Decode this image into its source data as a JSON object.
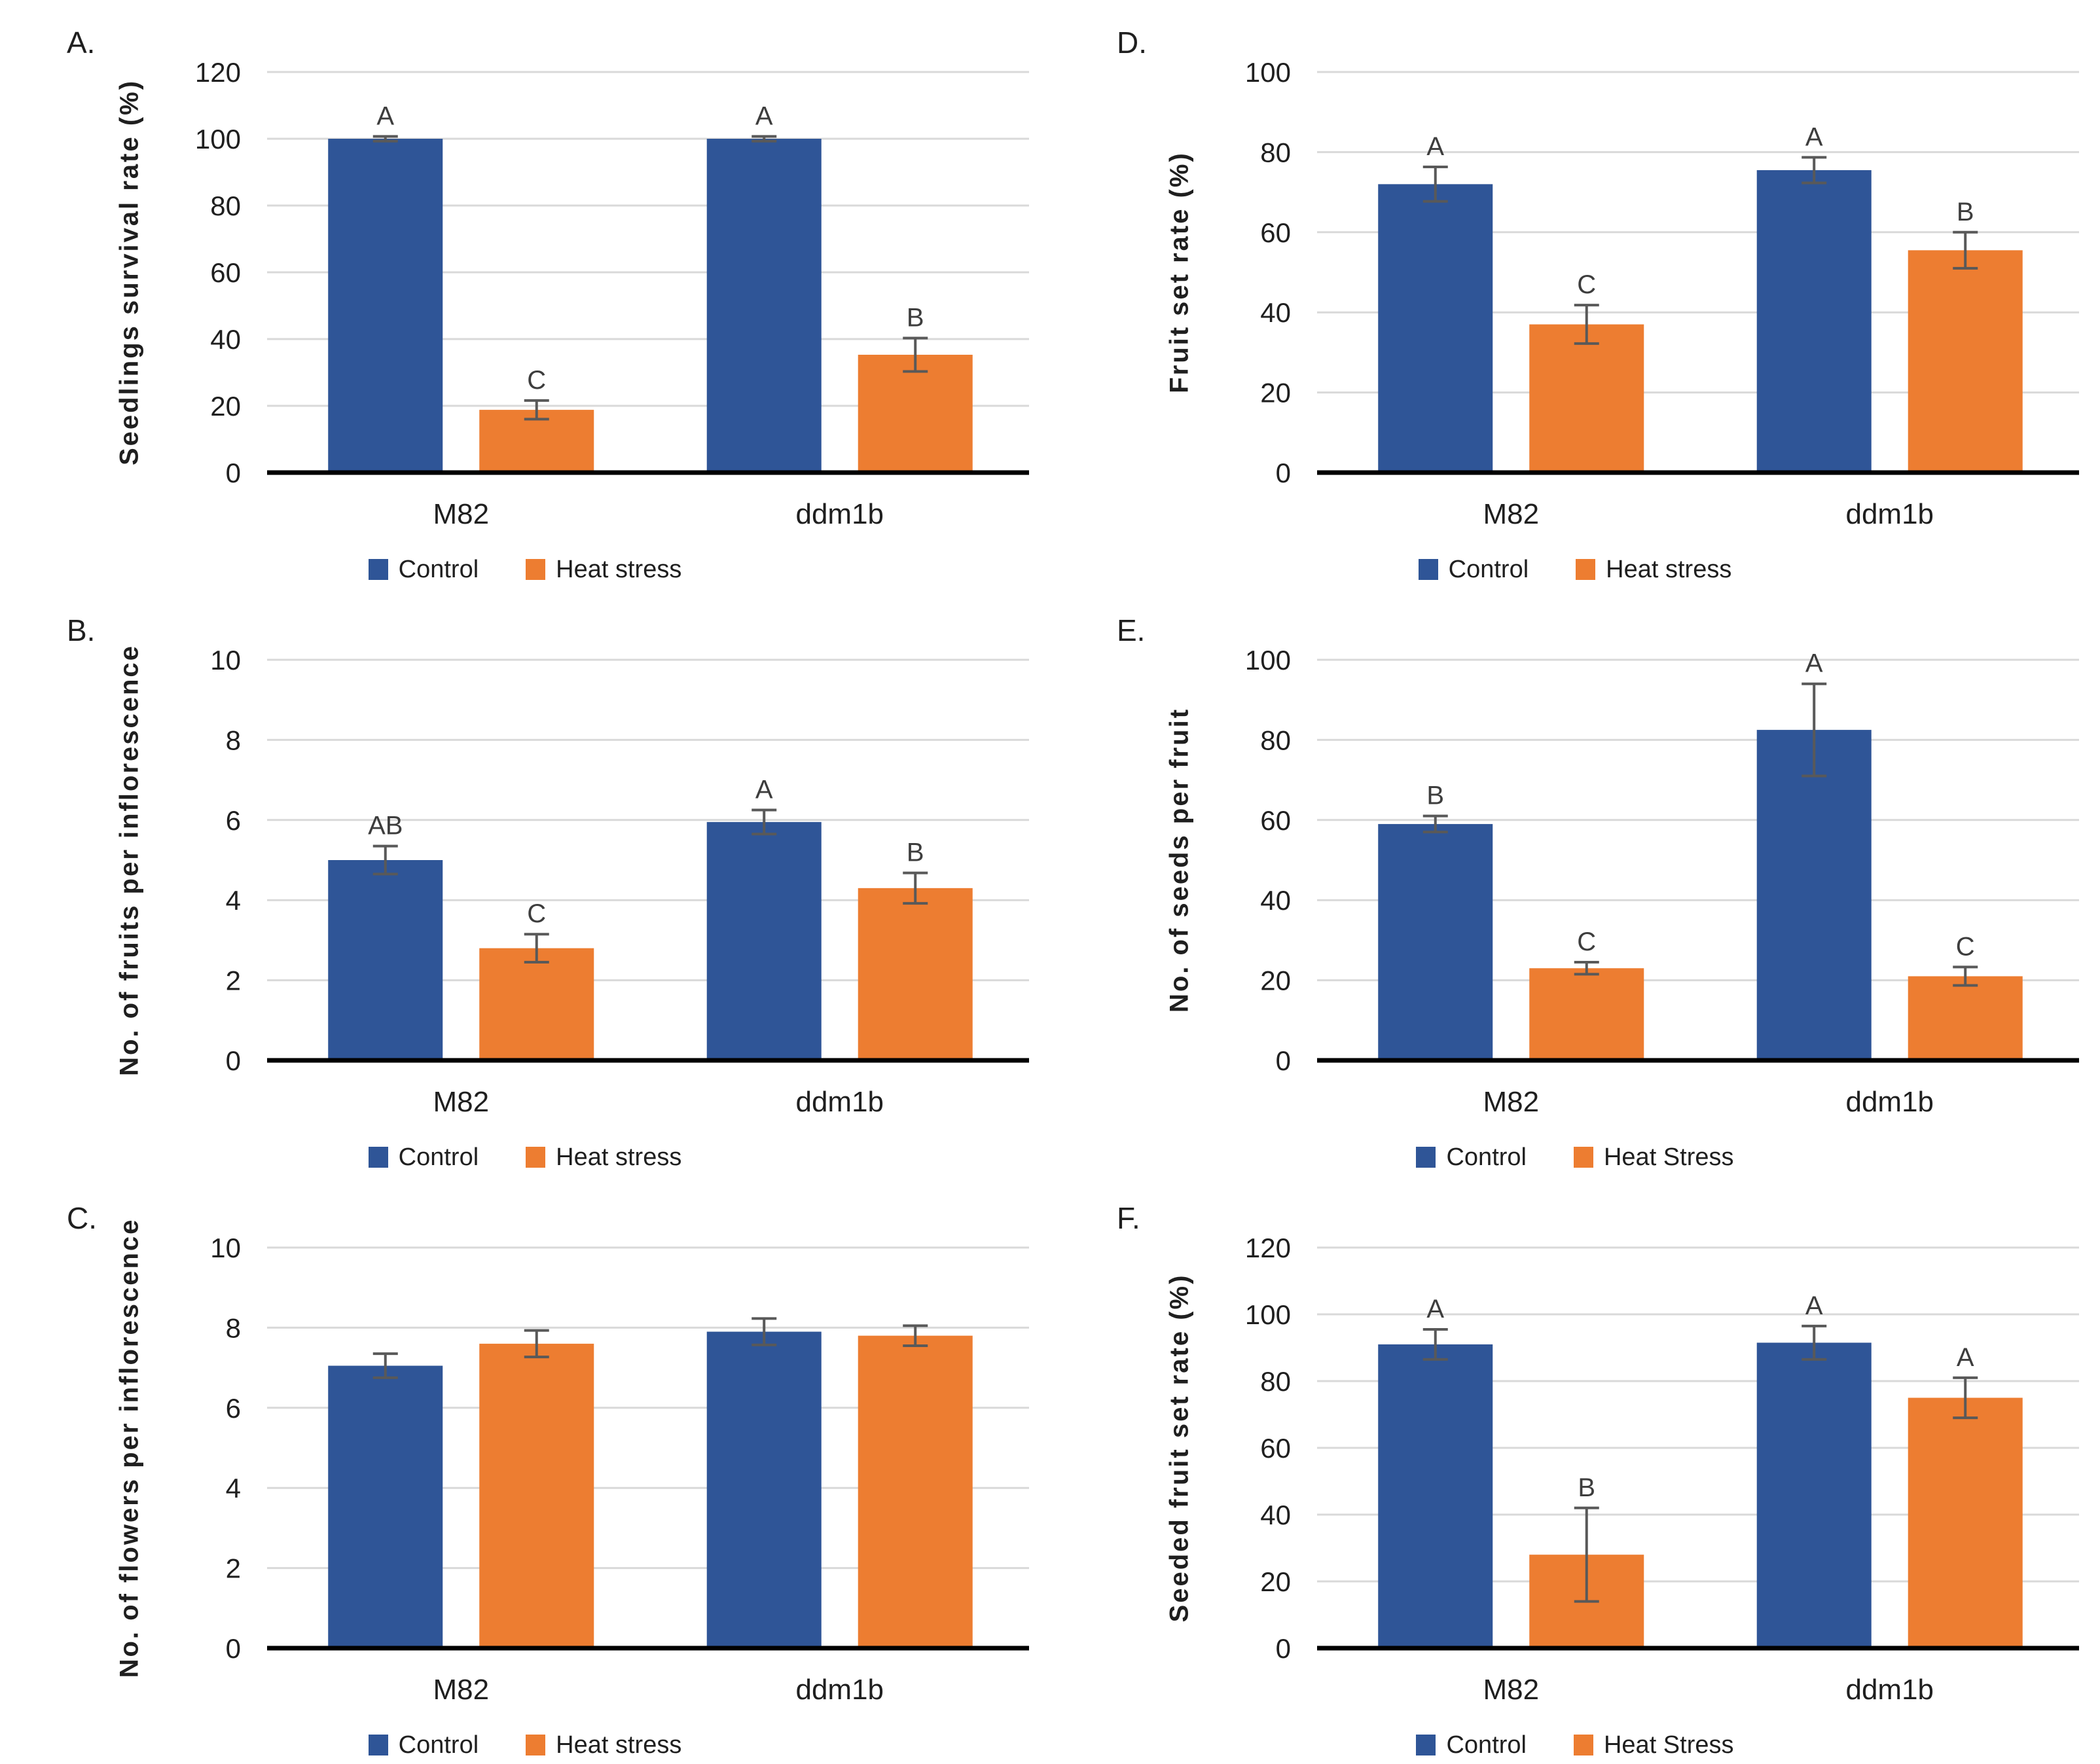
{
  "figure": {
    "background": "#FFFFFF"
  },
  "colors": {
    "control": "#2F5597",
    "heat_stress": "#ED7D31",
    "error_bar": "#595959",
    "gridline": "#D9D9D9",
    "axis_line": "#000000",
    "text": "#1f1f1f",
    "sig_letter": "#3d3d3d"
  },
  "chart_data": [
    {
      "panel": "A.",
      "type": "bar",
      "ylabel": "Seedlings survival rate (%)",
      "ylim": [
        0,
        120
      ],
      "ytick_step": 20,
      "grid": true,
      "legend_position": "bottom",
      "categories": [
        "M82",
        "ddm1b"
      ],
      "series": [
        {
          "name": "Control",
          "values": [
            100,
            100
          ],
          "errors": [
            0.7,
            0.7
          ],
          "sig_letters": [
            "A",
            "A"
          ]
        },
        {
          "name": "Heat stress",
          "values": [
            18.8,
            35.3
          ],
          "errors": [
            2.8,
            5
          ],
          "sig_letters": [
            "C",
            "B"
          ]
        }
      ]
    },
    {
      "panel": "D.",
      "type": "bar",
      "ylabel": "Fruit set rate (%)",
      "ylim": [
        0,
        100
      ],
      "ytick_step": 20,
      "grid": true,
      "legend_position": "bottom",
      "categories": [
        "M82",
        "ddm1b"
      ],
      "series": [
        {
          "name": "Control",
          "values": [
            72,
            75.5
          ],
          "errors": [
            4.3,
            3.2
          ],
          "sig_letters": [
            "A",
            "A"
          ]
        },
        {
          "name": "Heat stress",
          "values": [
            37,
            55.5
          ],
          "errors": [
            4.8,
            4.5
          ],
          "sig_letters": [
            "C",
            "B"
          ]
        }
      ]
    },
    {
      "panel": "B.",
      "type": "bar",
      "ylabel": "No. of fruits per inflorescence",
      "ylim": [
        0,
        10
      ],
      "ytick_step": 2,
      "grid": true,
      "legend_position": "bottom",
      "categories": [
        "M82",
        "ddm1b"
      ],
      "series": [
        {
          "name": "Control",
          "values": [
            5.0,
            5.95
          ],
          "errors": [
            0.35,
            0.3
          ],
          "sig_letters": [
            "AB",
            "A"
          ]
        },
        {
          "name": "Heat stress",
          "values": [
            2.8,
            4.3
          ],
          "errors": [
            0.35,
            0.38
          ],
          "sig_letters": [
            "C",
            "B"
          ]
        }
      ]
    },
    {
      "panel": "E.",
      "type": "bar",
      "ylabel": "No. of seeds per fruit",
      "ylim": [
        0,
        100
      ],
      "ytick_step": 20,
      "grid": true,
      "legend_position": "bottom",
      "categories": [
        "M82",
        "ddm1b"
      ],
      "series": [
        {
          "name": "Control",
          "values": [
            59,
            82.5
          ],
          "errors": [
            2,
            11.5
          ],
          "sig_letters": [
            "B",
            "A"
          ]
        },
        {
          "name": "Heat Stress",
          "values": [
            23,
            21
          ],
          "errors": [
            1.5,
            2.3
          ],
          "sig_letters": [
            "C",
            "C"
          ]
        }
      ]
    },
    {
      "panel": "C.",
      "type": "bar",
      "ylabel": "No. of flowers per inflorescence",
      "ylim": [
        0,
        10
      ],
      "ytick_step": 2,
      "grid": true,
      "legend_position": "bottom",
      "categories": [
        "M82",
        "ddm1b"
      ],
      "series": [
        {
          "name": "Control",
          "values": [
            7.05,
            7.9
          ],
          "errors": [
            0.3,
            0.33
          ],
          "sig_letters": [
            "",
            ""
          ]
        },
        {
          "name": "Heat stress",
          "values": [
            7.6,
            7.8
          ],
          "errors": [
            0.33,
            0.25
          ],
          "sig_letters": [
            "",
            ""
          ]
        }
      ]
    },
    {
      "panel": "F.",
      "type": "bar",
      "ylabel": "Seeded fruit set rate (%)",
      "ylim": [
        0,
        120
      ],
      "ytick_step": 20,
      "grid": true,
      "legend_position": "bottom",
      "categories": [
        "M82",
        "ddm1b"
      ],
      "series": [
        {
          "name": "Control",
          "values": [
            91,
            91.5
          ],
          "errors": [
            4.5,
            5
          ],
          "sig_letters": [
            "A",
            "A"
          ]
        },
        {
          "name": "Heat Stress",
          "values": [
            28,
            75
          ],
          "errors": [
            14,
            6
          ],
          "sig_letters": [
            "B",
            "A"
          ]
        }
      ]
    }
  ]
}
